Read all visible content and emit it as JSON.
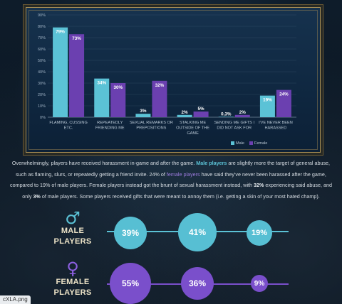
{
  "chart_data": {
    "type": "bar",
    "categories": [
      [
        "FLAMING, CUSSING",
        "ETC."
      ],
      [
        "REPEATEDLY",
        "FRIENDING ME"
      ],
      [
        "SEXUAL REMARKS OR",
        "PREPOSITIONS"
      ],
      [
        "STALKING ME",
        "OUTSIDE OF THE",
        "GAME"
      ],
      [
        "SENDING ME GIFTS I",
        "DID NOT ASK FOR"
      ],
      [
        "I'VE NEVER BEEN",
        "HARASSED"
      ]
    ],
    "series": [
      {
        "name": "Male",
        "color": "#5bc2d6",
        "values": [
          79,
          34,
          3,
          2,
          0.3,
          19
        ],
        "labels": [
          "79%",
          "34%",
          "3%",
          "2%",
          "0,3%",
          "19%"
        ]
      },
      {
        "name": "Female",
        "color": "#6b40b0",
        "values": [
          73,
          30,
          32,
          5,
          2,
          24
        ],
        "labels": [
          "73%",
          "30%",
          "32%",
          "5%",
          "2%",
          "24%"
        ]
      }
    ],
    "ylim": [
      0,
      90
    ],
    "yticks": [
      "0%",
      "10%",
      "20%",
      "30%",
      "40%",
      "50%",
      "60%",
      "70%",
      "80%",
      "90%"
    ],
    "grid": true,
    "legend": "bottom-right"
  },
  "summary": {
    "s1": "Overwhelmingly, players have received harassment in-game and after the game. ",
    "s2": "Male players",
    "s3": " are slightly more the target of general abuse, such as flaming, slurs, or repeatedly getting a friend invite. 24% of ",
    "s4": "female players",
    "s5": " have said they've never been harassed after the game, compared to 19% of male players. Female players instead got the brunt of sexual harassment instead, with ",
    "s6": "32%",
    "s7": " experiencing said abuse, and only ",
    "s8": "3%",
    "s9": " of male players. Some players received gifts that were meant to annoy them (i.e. getting a skin of your most hated champ)."
  },
  "male": {
    "icon": "male-symbol-icon",
    "label_1": "MALE",
    "label_2": "PLAYERS",
    "color": "#5bc2d6",
    "stats": [
      "39%",
      "41%",
      "19%"
    ],
    "values": [
      39,
      41,
      19
    ]
  },
  "female": {
    "icon": "female-symbol-icon",
    "label_1": "FEMALE",
    "label_2": "PLAYERS",
    "color": "#7a4fcb",
    "stats": [
      "55%",
      "36%",
      "9%"
    ],
    "values": [
      55,
      36,
      9
    ]
  },
  "file_tag": "cXLA.png"
}
